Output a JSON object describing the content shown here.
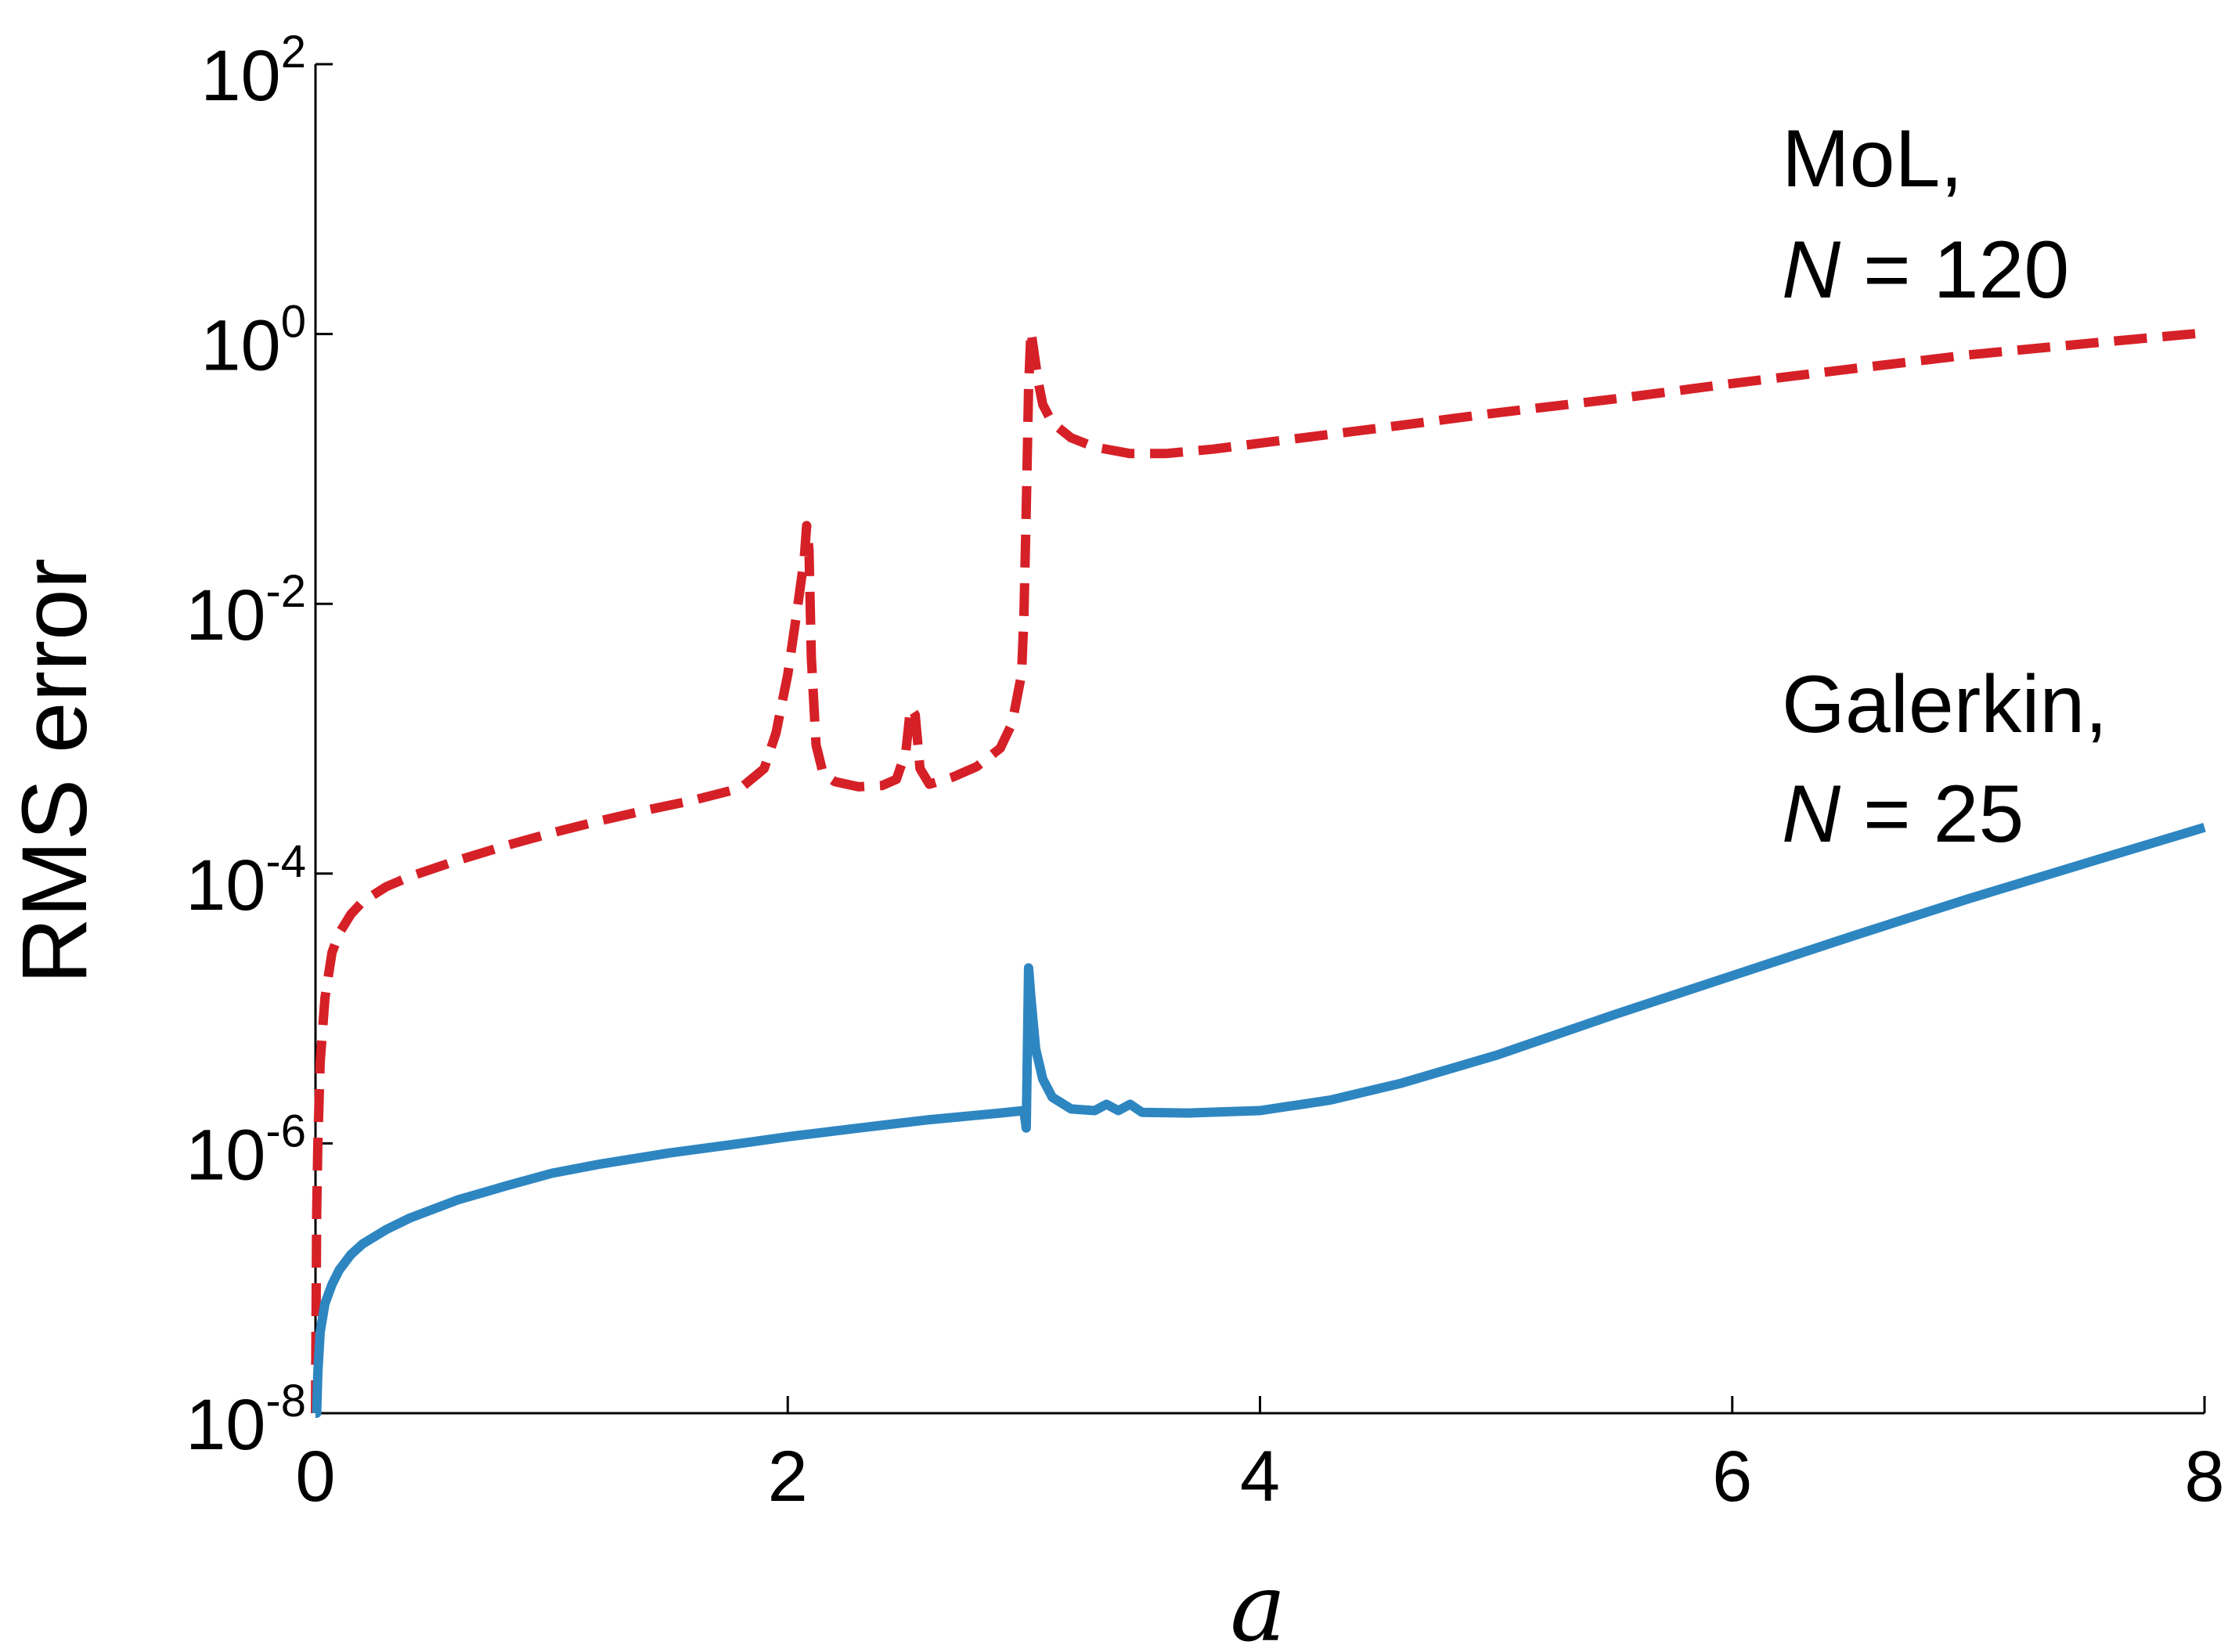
{
  "chart_data": {
    "type": "line",
    "xlabel": "a",
    "ylabel": "RMS error",
    "xlim": [
      0,
      8
    ],
    "ylim": [
      1e-08,
      100
    ],
    "yscale": "log",
    "grid": false,
    "x_ticks": [
      {
        "value": 0,
        "label": "0"
      },
      {
        "value": 2,
        "label": "2"
      },
      {
        "value": 4,
        "label": "4"
      },
      {
        "value": 6,
        "label": "6"
      },
      {
        "value": 8,
        "label": "8"
      }
    ],
    "y_ticks": [
      {
        "value": 1e-08,
        "base": "10",
        "exp": "-8"
      },
      {
        "value": 1e-06,
        "base": "10",
        "exp": "-6"
      },
      {
        "value": 0.0001,
        "base": "10",
        "exp": "-4"
      },
      {
        "value": 0.01,
        "base": "10",
        "exp": "-2"
      },
      {
        "value": 1,
        "base": "10",
        "exp": "0"
      },
      {
        "value": 100,
        "base": "10",
        "exp": "2"
      }
    ],
    "series": [
      {
        "label_line1": "MoL,",
        "label_var": "N",
        "label_rest": " = 120",
        "color": "#d62027",
        "style": "dashed",
        "points": [
          [
            0.0,
            1e-08
          ],
          [
            0.005,
            3e-07
          ],
          [
            0.01,
            1e-06
          ],
          [
            0.02,
            4e-06
          ],
          [
            0.04,
            1.2e-05
          ],
          [
            0.07,
            2.6e-05
          ],
          [
            0.1,
            3.6e-05
          ],
          [
            0.15,
            5e-05
          ],
          [
            0.2,
            6.2e-05
          ],
          [
            0.3,
            8e-05
          ],
          [
            0.4,
            9.5e-05
          ],
          [
            0.6,
            0.000125
          ],
          [
            0.8,
            0.00016
          ],
          [
            1.0,
            0.0002
          ],
          [
            1.2,
            0.000245
          ],
          [
            1.4,
            0.000295
          ],
          [
            1.6,
            0.00035
          ],
          [
            1.8,
            0.00043
          ],
          [
            1.9,
            0.0006
          ],
          [
            1.95,
            0.0011
          ],
          [
            2.0,
            0.003
          ],
          [
            2.04,
            0.009
          ],
          [
            2.07,
            0.022
          ],
          [
            2.08,
            0.038
          ],
          [
            2.09,
            0.025
          ],
          [
            2.1,
            0.004
          ],
          [
            2.12,
            0.0009
          ],
          [
            2.15,
            0.00055
          ],
          [
            2.2,
            0.00048
          ],
          [
            2.3,
            0.00044
          ],
          [
            2.4,
            0.00045
          ],
          [
            2.46,
            0.0005
          ],
          [
            2.5,
            0.0008
          ],
          [
            2.52,
            0.0017
          ],
          [
            2.54,
            0.0015
          ],
          [
            2.56,
            0.0006
          ],
          [
            2.6,
            0.00046
          ],
          [
            2.7,
            0.00052
          ],
          [
            2.8,
            0.00062
          ],
          [
            2.9,
            0.00085
          ],
          [
            2.95,
            0.0013
          ],
          [
            2.99,
            0.003
          ],
          [
            3.0,
            0.008
          ],
          [
            3.01,
            0.05
          ],
          [
            3.02,
            0.4
          ],
          [
            3.03,
            1.05
          ],
          [
            3.04,
            0.8
          ],
          [
            3.06,
            0.45
          ],
          [
            3.08,
            0.3
          ],
          [
            3.12,
            0.22
          ],
          [
            3.2,
            0.17
          ],
          [
            3.3,
            0.145
          ],
          [
            3.45,
            0.13
          ],
          [
            3.6,
            0.13
          ],
          [
            3.8,
            0.14
          ],
          [
            4.0,
            0.155
          ],
          [
            4.5,
            0.2
          ],
          [
            5.0,
            0.26
          ],
          [
            5.5,
            0.33
          ],
          [
            6.0,
            0.43
          ],
          [
            6.5,
            0.55
          ],
          [
            7.0,
            0.7
          ],
          [
            7.5,
            0.85
          ],
          [
            8.0,
            1.02
          ]
        ]
      },
      {
        "label_line1": "Galerkin,",
        "label_var": "N",
        "label_rest": " = 25",
        "color": "#2e86c1",
        "style": "solid",
        "points": [
          [
            0.0,
            1e-08
          ],
          [
            0.005,
            1e-08
          ],
          [
            0.01,
            2e-08
          ],
          [
            0.02,
            4e-08
          ],
          [
            0.04,
            6.5e-08
          ],
          [
            0.07,
            9e-08
          ],
          [
            0.1,
            1.15e-07
          ],
          [
            0.15,
            1.5e-07
          ],
          [
            0.2,
            1.8e-07
          ],
          [
            0.3,
            2.3e-07
          ],
          [
            0.4,
            2.8e-07
          ],
          [
            0.6,
            3.8e-07
          ],
          [
            0.8,
            4.8e-07
          ],
          [
            1.0,
            6e-07
          ],
          [
            1.2,
            7e-07
          ],
          [
            1.5,
            8.5e-07
          ],
          [
            1.8,
            1e-06
          ],
          [
            2.0,
            1.12e-06
          ],
          [
            2.3,
            1.3e-06
          ],
          [
            2.6,
            1.5e-06
          ],
          [
            2.9,
            1.68e-06
          ],
          [
            3.0,
            1.75e-06
          ],
          [
            3.01,
            1.3e-06
          ],
          [
            3.02,
            2e-05
          ],
          [
            3.03,
            1.2e-05
          ],
          [
            3.05,
            5e-06
          ],
          [
            3.08,
            3e-06
          ],
          [
            3.12,
            2.2e-06
          ],
          [
            3.2,
            1.8e-06
          ],
          [
            3.3,
            1.75e-06
          ],
          [
            3.35,
            1.95e-06
          ],
          [
            3.4,
            1.75e-06
          ],
          [
            3.45,
            1.95e-06
          ],
          [
            3.5,
            1.7e-06
          ],
          [
            3.7,
            1.68e-06
          ],
          [
            4.0,
            1.75e-06
          ],
          [
            4.3,
            2.1e-06
          ],
          [
            4.6,
            2.8e-06
          ],
          [
            5.0,
            4.5e-06
          ],
          [
            5.5,
            9e-06
          ],
          [
            6.0,
            1.75e-05
          ],
          [
            6.5,
            3.4e-05
          ],
          [
            7.0,
            6.5e-05
          ],
          [
            7.5,
            0.00012
          ],
          [
            8.0,
            0.00022
          ]
        ]
      }
    ]
  }
}
